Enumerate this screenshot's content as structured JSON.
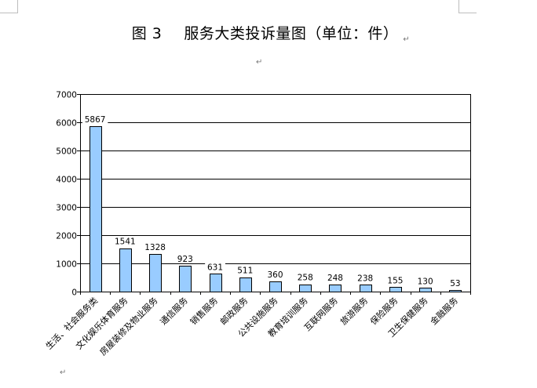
{
  "document": {
    "title_fig": "图 3",
    "title_text": "服务大类投诉量图（单位：件）",
    "paragraph_mark": "↵"
  },
  "chart_data": {
    "type": "bar",
    "title": "",
    "xlabel": "",
    "ylabel": "",
    "ylim": [
      0,
      7000
    ],
    "yticks": [
      0,
      1000,
      2000,
      3000,
      4000,
      5000,
      6000,
      7000
    ],
    "grid": true,
    "legend": "none",
    "bar_color": "#99ccff",
    "bar_edge_color": "#000000",
    "categories": [
      "生活、社会服务类",
      "文化娱乐体育服务",
      "房屋装修及物业服务",
      "通信服务",
      "销售服务",
      "邮政服务",
      "公共设施服务",
      "教育培训服务",
      "互联网服务",
      "旅游服务",
      "保险服务",
      "卫生保健服务",
      "金融服务"
    ],
    "values": [
      5867,
      1541,
      1328,
      923,
      631,
      511,
      360,
      258,
      248,
      238,
      155,
      130,
      53
    ]
  }
}
